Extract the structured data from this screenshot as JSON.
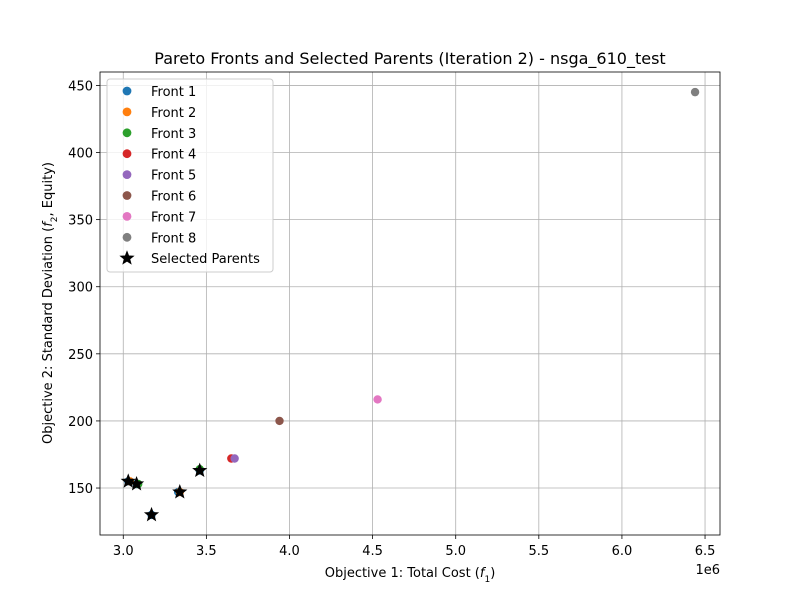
{
  "chart_data": {
    "type": "scatter",
    "title": "Pareto Fronts and Selected Parents (Iteration 2) - nsga_610_test",
    "xlabel": "Objective 1: Total Cost (",
    "xlabel_sym": "f",
    "xlabel_sub": "1",
    "xlabel_end": ")",
    "ylabel": "Objective 2: Standard Deviation (",
    "ylabel_sym": "f",
    "ylabel_sub": "2",
    "ylabel_end": ", Equity)",
    "x_offset_label": "1e6",
    "xlim": [
      2.86,
      6.59
    ],
    "ylim": [
      115,
      460
    ],
    "x_ticks": [
      3.0,
      3.5,
      4.0,
      4.5,
      5.0,
      5.5,
      6.0,
      6.5
    ],
    "x_tick_labels": [
      "3.0",
      "3.5",
      "4.0",
      "4.5",
      "5.0",
      "5.5",
      "6.0",
      "6.5"
    ],
    "y_ticks": [
      150,
      200,
      250,
      300,
      350,
      400,
      450
    ],
    "y_tick_labels": [
      "150",
      "200",
      "250",
      "300",
      "350",
      "400",
      "450"
    ],
    "grid": true,
    "legend_position": "upper-left",
    "series": [
      {
        "name": "Front 1",
        "color": "#1f77b4",
        "marker": "circle",
        "points": [
          [
            3.17,
            130
          ],
          [
            3.03,
            155
          ],
          [
            3.08,
            153
          ],
          [
            3.33,
            147
          ],
          [
            3.46,
            163
          ]
        ]
      },
      {
        "name": "Front 2",
        "color": "#ff7f0e",
        "marker": "circle",
        "points": [
          [
            3.34,
            147
          ],
          [
            3.04,
            155
          ]
        ]
      },
      {
        "name": "Front 3",
        "color": "#2ca02c",
        "marker": "circle",
        "points": [
          [
            3.46,
            164
          ],
          [
            3.09,
            153
          ]
        ]
      },
      {
        "name": "Front 4",
        "color": "#d62728",
        "marker": "circle",
        "points": [
          [
            3.65,
            172
          ]
        ]
      },
      {
        "name": "Front 5",
        "color": "#9467bd",
        "marker": "circle",
        "points": [
          [
            3.67,
            172
          ]
        ]
      },
      {
        "name": "Front 6",
        "color": "#8c564b",
        "marker": "circle",
        "points": [
          [
            3.94,
            200
          ]
        ]
      },
      {
        "name": "Front 7",
        "color": "#e377c2",
        "marker": "circle",
        "points": [
          [
            4.53,
            216
          ]
        ]
      },
      {
        "name": "Front 8",
        "color": "#7f7f7f",
        "marker": "circle",
        "points": [
          [
            6.44,
            445
          ]
        ]
      },
      {
        "name": "Selected Parents",
        "color": "#000000",
        "marker": "star",
        "points": [
          [
            3.17,
            130
          ],
          [
            3.03,
            155
          ],
          [
            3.08,
            153
          ],
          [
            3.34,
            147
          ],
          [
            3.46,
            163
          ]
        ]
      }
    ]
  }
}
